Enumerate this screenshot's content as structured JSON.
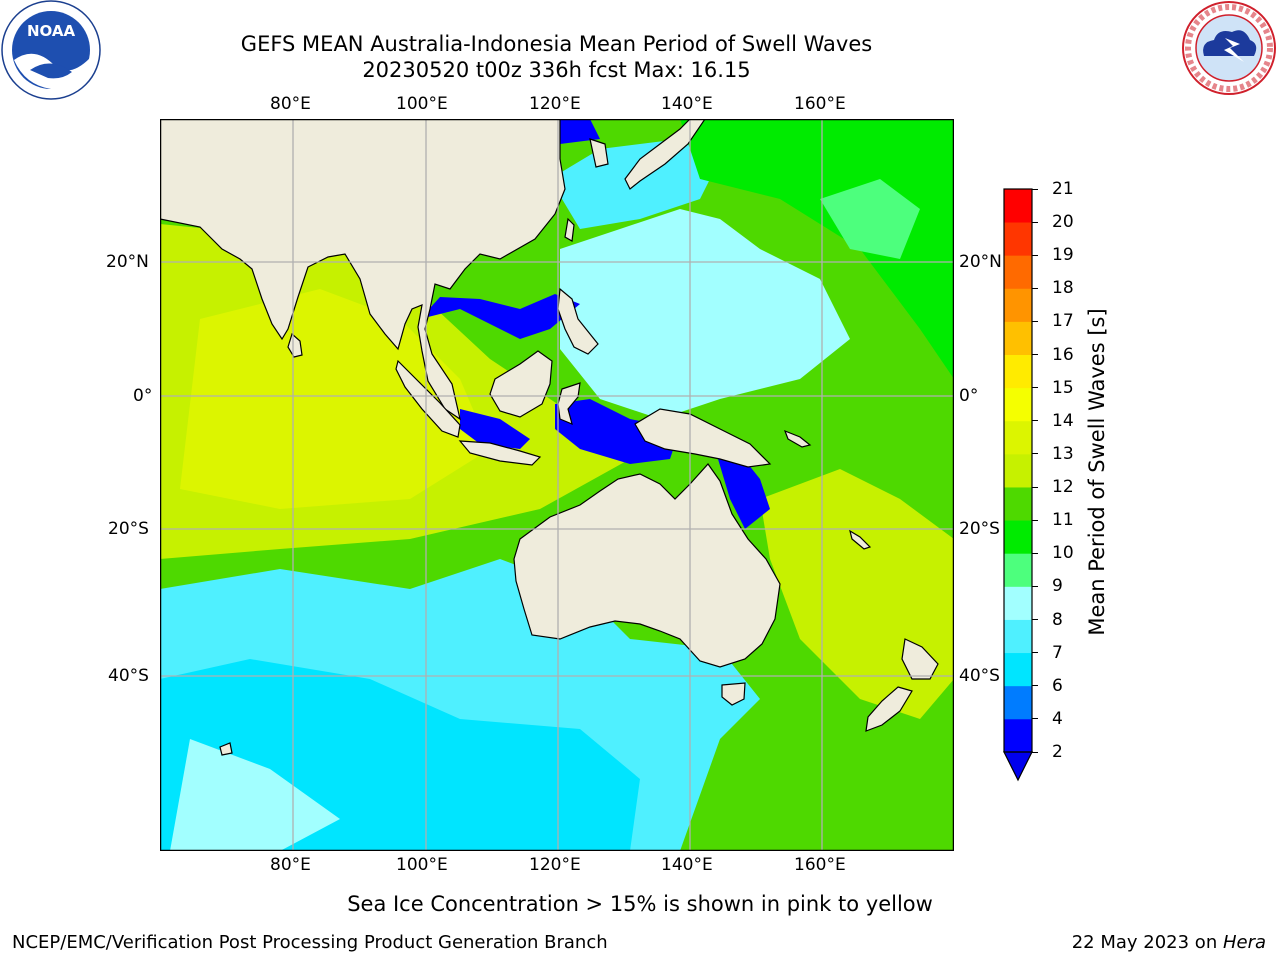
{
  "header": {
    "title_line1": "GEFS MEAN Australia-Indonesia Mean Period of Swell Waves",
    "title_line2": "20230520 t00z 336h fcst   Max: 16.15"
  },
  "logos": {
    "noaa": {
      "icon": "noaa-logo-icon",
      "text": "NOAA"
    },
    "nws": {
      "icon": "nws-logo-icon"
    }
  },
  "map": {
    "lon_labels": [
      "80°E",
      "100°E",
      "120°E",
      "140°E",
      "160°E"
    ],
    "lat_labels": [
      "20°N",
      "0°",
      "20°S",
      "40°S"
    ],
    "colors": {
      "land": "#efecdc",
      "grid": "#b0b0b0",
      "coast": "#000000"
    }
  },
  "colorbar": {
    "label": "Mean Period of Swell Waves [s]",
    "ticks": [
      "2",
      "4",
      "6",
      "7",
      "8",
      "9",
      "10",
      "11",
      "12",
      "13",
      "14",
      "15",
      "16",
      "17",
      "18",
      "19",
      "20",
      "21"
    ],
    "colors": [
      "#0000ff",
      "#007cff",
      "#00e5ff",
      "#4ff0ff",
      "#a2ffff",
      "#4dff7d",
      "#00eb00",
      "#4ed900",
      "#c6f100",
      "#dcf500",
      "#f5ff00",
      "#ffeb00",
      "#ffc000",
      "#ff9400",
      "#ff6a00",
      "#ff3600",
      "#ff0000"
    ],
    "extend_color": "#0000ee"
  },
  "note": "Sea Ice Concentration > 15% is shown in pink to yellow",
  "footer": {
    "left": "NCEP/EMC/Verification Post Processing Product Generation Branch",
    "date": "22 May 2023 on ",
    "machine": "Hera"
  }
}
